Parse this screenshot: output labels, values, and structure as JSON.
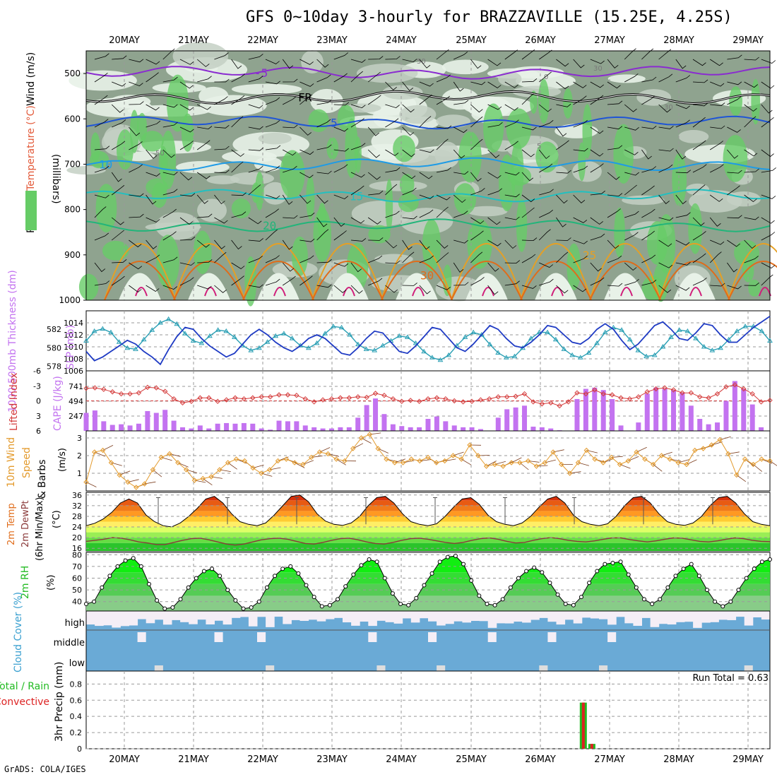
{
  "title": "GFS 0~10day 3-hourly for BRAZZAVILLE (15.25E, 4.25S)",
  "credit": "GrADS: COLA/IGES",
  "colors": {
    "axis": "#000000",
    "grid": "#9a9a9a",
    "rh_dark": "#8fa38f",
    "rh_mid": "#c4d0c4",
    "rh_light": "#e8f2e8",
    "rh_green": "#66cc66",
    "temp_purple": "#8a2bd0",
    "temp_freeze": "#000000",
    "temp_blue": "#1f55d6",
    "temp_lblue": "#1e9be6",
    "temp_teal": "#22c0c0",
    "temp_green": "#22b57a",
    "temp_orange": "#e6a024",
    "temp_dorange": "#e06c1a",
    "temp_magenta": "#d01e7a",
    "slp": "#2a9fb4",
    "thickness": "#1f3bc4",
    "lifted": "#d43a3a",
    "cape": "#c373f0",
    "wind": "#e39a2c",
    "barb": "#7a3a1a",
    "dewpt": "#8a3a3a",
    "rh2m": "#22bb22",
    "cloud": "#6aaad6",
    "cloud_clear": "#f4eef6",
    "rain": "#22bb22",
    "convective": "#dd2222"
  },
  "chart_data": [
    {
      "panel": "upper-air",
      "type": "heatmap",
      "ylabel_parts": [
        "Wind (m/s)",
        "Temperature (°C)",
        "RH (%)",
        "(millibars)"
      ],
      "y_ticks": [
        500,
        600,
        700,
        800,
        900,
        1000
      ],
      "ylim": [
        450,
        1000
      ],
      "x_dates_top": [
        "20MAY",
        "21MAY",
        "22MAY",
        "23MAY",
        "24MAY",
        "25MAY",
        "26MAY",
        "27MAY",
        "28MAY",
        "29MAY"
      ],
      "isotherms": [
        {
          "label": "-5",
          "level": 498,
          "color": "temp_purple"
        },
        {
          "label": "FR",
          "level": 552,
          "color": "temp_freeze"
        },
        {
          "label": "5",
          "level": 608,
          "color": "temp_blue"
        },
        {
          "label": "10",
          "level": 700,
          "color": "temp_lblue"
        },
        {
          "label": "15",
          "level": 770,
          "color": "temp_teal"
        },
        {
          "label": "20",
          "level": 835,
          "color": "temp_green"
        },
        {
          "label": "25",
          "level": 900,
          "color": "temp_orange"
        },
        {
          "label": "30",
          "level": 945,
          "color": "temp_dorange"
        }
      ],
      "rh_contour_labels": [
        "50",
        "30",
        "50",
        "0",
        "30",
        "5"
      ],
      "legend_rh_scale": "RH (%)"
    },
    {
      "panel": "pressure",
      "type": "line",
      "ylabel_left": "1000-500mb Thickness (dm)",
      "ylabel_right": "SLP (mb)",
      "left_ticks": [
        578,
        580,
        582
      ],
      "right_ticks": [
        1006,
        1008,
        1010,
        1012,
        1014
      ],
      "ylim_slp": [
        1006,
        1016
      ],
      "ylim_thickness": [
        577.5,
        584
      ],
      "series": [
        {
          "name": "SLP (mb)",
          "color": "slp",
          "marker": "triangle",
          "values": [
            1011,
            1012.6,
            1013,
            1012.4,
            1010.8,
            1009.8,
            1009.6,
            1011.2,
            1012.8,
            1014,
            1014.6,
            1013.8,
            1012.2,
            1011,
            1010.6,
            1011.8,
            1012.8,
            1012.6,
            1011.6,
            1010.2,
            1009.4,
            1009.8,
            1010.8,
            1011.8,
            1012.2,
            1011.4,
            1010.2,
            1009.8,
            1010.6,
            1012.2,
            1013.4,
            1013.2,
            1012,
            1010.4,
            1009.6,
            1009.4,
            1010.2,
            1011,
            1011.8,
            1011.6,
            1010.6,
            1009.2,
            1008.2,
            1007.8,
            1008.6,
            1010.2,
            1011.6,
            1012.4,
            1012,
            1010.4,
            1009,
            1008.2,
            1008.4,
            1009.8,
            1011.4,
            1012.4,
            1012.4,
            1011.2,
            1009.6,
            1008.6,
            1008.2,
            1009,
            1010.6,
            1012.4,
            1013.2,
            1012.8,
            1011.2,
            1009.4,
            1008.4,
            1008.6,
            1010,
            1011.6,
            1012.8,
            1012.6,
            1011.4,
            1010,
            1009.4,
            1009.8,
            1011.2,
            1012.6,
            1013.4,
            1013.4,
            1012.6,
            1011
          ]
        },
        {
          "name": "1000-500mb Thickness (dm)",
          "color": "thickness",
          "marker": "none",
          "values": [
            579.6,
            578.6,
            579,
            579.6,
            580.2,
            580.8,
            580.4,
            579.6,
            579,
            578.2,
            579.8,
            581.2,
            582.2,
            582,
            581,
            580.2,
            579.6,
            579,
            579.4,
            580.4,
            581.4,
            582,
            581.4,
            580.6,
            580,
            579.6,
            580.2,
            581,
            581.4,
            581,
            580.2,
            579.4,
            579.2,
            580,
            581,
            581.8,
            581.6,
            580.6,
            579.6,
            579.4,
            580.2,
            581.2,
            582.2,
            582,
            581,
            580,
            579.6,
            580.4,
            581.4,
            582.4,
            582,
            581,
            580.2,
            580,
            580.6,
            581.4,
            582.4,
            582.2,
            581.4,
            580.6,
            580.4,
            581,
            582,
            582.6,
            582,
            580.8,
            579.8,
            580.4,
            581.4,
            582.4,
            582.8,
            582,
            581,
            580.8,
            581.6,
            582.6,
            582.4,
            581.4,
            580.6,
            580.6,
            581.4,
            582.2,
            582.8,
            583.4
          ]
        }
      ]
    },
    {
      "panel": "stability",
      "type": "bar",
      "ylabel_left": "Lifted Index",
      "ylabel_right": "CAPE (J/kg)",
      "left_ticks": [
        "-6",
        "-3",
        "0",
        "3",
        "6"
      ],
      "right_ticks": [
        247,
        494,
        741
      ],
      "ylim_cape": [
        0,
        1000
      ],
      "series": [
        {
          "name": "CAPE (J/kg)",
          "color": "cape",
          "values": [
            300,
            340,
            160,
            100,
            110,
            90,
            120,
            330,
            300,
            350,
            170,
            60,
            40,
            90,
            40,
            120,
            130,
            120,
            130,
            120,
            40,
            20,
            170,
            160,
            160,
            90,
            60,
            40,
            40,
            60,
            60,
            220,
            430,
            540,
            280,
            110,
            80,
            60,
            60,
            200,
            240,
            160,
            90,
            60,
            60,
            30,
            0,
            220,
            360,
            390,
            420,
            70,
            60,
            40,
            10,
            0,
            530,
            700,
            720,
            680,
            530,
            90,
            0,
            140,
            620,
            720,
            700,
            680,
            640,
            420,
            200,
            110,
            140,
            500,
            830,
            700,
            440,
            60,
            0
          ]
        },
        {
          "name": "Lifted Index",
          "color": "lifted",
          "values": [
            -2.5,
            -2.6,
            -2.3,
            -1.8,
            -1.4,
            -1.4,
            -1.6,
            -2.7,
            -2.6,
            -1.9,
            -0.4,
            0.4,
            0.1,
            -0.6,
            -0.6,
            0.1,
            -0.2,
            -0.6,
            -0.4,
            -0.6,
            -0.8,
            -0.8,
            -1.2,
            -1.2,
            -1.1,
            -0.4,
            0.2,
            -0.2,
            -0.4,
            -0.6,
            -0.6,
            -0.8,
            -0.7,
            -1.5,
            -1.1,
            -0.4,
            0.1,
            -0.1,
            0.1,
            -0.4,
            -0.6,
            -0.4,
            0,
            0.2,
            0.1,
            -0.2,
            -0.4,
            -0.8,
            -0.8,
            -0.9,
            -1.4,
            0.2,
            0.6,
            0.4,
            1,
            0.2,
            -1.6,
            -1.4,
            -2.2,
            -1.4,
            -1.2,
            -0.6,
            -0.4,
            -0.8,
            -1.8,
            -2.4,
            -2.6,
            -2.2,
            -1.6,
            -1.6,
            -0.8,
            -0.6,
            -1.4,
            -2.8,
            -3.2,
            -2.4,
            -1.4,
            0.2,
            -0.1
          ]
        }
      ]
    },
    {
      "panel": "wind",
      "type": "line",
      "ylabel": "10m Wind Speed (m/s) & Barbs",
      "y_ticks": [
        1,
        2,
        3
      ],
      "ylim": [
        0,
        3.4
      ],
      "series": [
        {
          "name": "10m Wind Speed",
          "color": "wind",
          "values": [
            0.5,
            2.2,
            2.3,
            1.6,
            0.9,
            0.5,
            0.2,
            0.4,
            1.2,
            1.9,
            2.1,
            1.6,
            1.2,
            0.6,
            0.7,
            0.8,
            1.2,
            1.6,
            1.8,
            1.7,
            1.3,
            1,
            1.2,
            1.7,
            1.8,
            1.6,
            1.5,
            1.9,
            2.2,
            2.1,
            1.8,
            1.7,
            2.4,
            3,
            3.2,
            2.4,
            1.8,
            1.6,
            1.6,
            1.8,
            1.7,
            1.9,
            1.6,
            1.7,
            2,
            1.8,
            2.6,
            2,
            1.4,
            1.5,
            1.4,
            1.6,
            1.6,
            1.7,
            1.4,
            1.6,
            2.2,
            1.5,
            1,
            1.6,
            2.3,
            1.8,
            1.6,
            1.9,
            1.5,
            1.7,
            2.2,
            1.8,
            1.5,
            2,
            1.8,
            1.6,
            1.5,
            2.3,
            2.4,
            2.6,
            2.9,
            2.1,
            0.9,
            1.8,
            1.5,
            1.8,
            1.7
          ]
        }
      ]
    },
    {
      "panel": "temperature",
      "type": "area",
      "ylabel": "2m Temp 2m DewPt (6hr Min/Max) (°C)",
      "y_ticks": [
        16,
        20,
        24,
        28,
        32,
        36
      ],
      "ylim": [
        15,
        37
      ],
      "series": [
        {
          "name": "2m Temp",
          "color": "temp_dorange",
          "values": [
            24.5,
            25.4,
            27,
            29.5,
            33,
            34.5,
            33,
            28.5,
            26,
            24.5,
            24,
            25.5,
            28,
            31,
            34.5,
            35.5,
            33,
            29,
            26,
            25,
            24.5,
            25.5,
            28.5,
            32,
            35.5,
            36,
            33.5,
            29,
            26.2,
            25,
            24.6,
            25.5,
            28,
            32,
            35,
            35.5,
            33,
            29,
            26,
            25,
            24.5,
            25.2,
            28,
            31.5,
            34.5,
            35,
            32.5,
            28.5,
            26,
            25,
            24.5,
            25.5,
            28,
            31.5,
            34.5,
            35.5,
            33,
            28.5,
            26,
            25,
            24.5,
            25.2,
            28,
            32,
            35,
            35.5,
            33,
            29,
            26,
            25,
            24.6,
            25.5,
            28,
            32,
            35,
            35.5,
            33,
            29,
            26,
            25,
            24.5
          ]
        },
        {
          "name": "2m DewPt",
          "color": "dewpt",
          "values": [
            18.6,
            19,
            19.4,
            20,
            19.8,
            19.2,
            18.4,
            18,
            17.4,
            17.4,
            18.2,
            19,
            19.6,
            19.8,
            19.2,
            18.4,
            17.6,
            17.2,
            17.6,
            18.4,
            19.2,
            19.6,
            19.8,
            19.4,
            18.6,
            17.8,
            17.6,
            18.2,
            19,
            19.6,
            19.8,
            19.2,
            18.4,
            17.8,
            17.6,
            18.2,
            19,
            19.6,
            19.8,
            19.4,
            18.8,
            18.2,
            17.8,
            18.2,
            19,
            19.6,
            19.9,
            19.4,
            18.6,
            18,
            18.2,
            19,
            19.6,
            20,
            19.6,
            19,
            18.6,
            18.4,
            18.8,
            19.4,
            19.9,
            19.9,
            19.3,
            18.8,
            18.4,
            18.8,
            19.4,
            19.9,
            19.8,
            19.2,
            18.6,
            18.4,
            18.8,
            19.4,
            19.9,
            19.6,
            19,
            18.6,
            18.5
          ]
        }
      ]
    },
    {
      "panel": "humidity",
      "type": "area",
      "ylabel": "2m RH (%)",
      "y_ticks": [
        40,
        50,
        60,
        70,
        80
      ],
      "ylim": [
        32,
        82
      ],
      "series": [
        {
          "name": "2m RH",
          "color": "rh2m",
          "values": [
            38,
            40,
            52,
            62,
            70,
            75,
            77,
            70,
            55,
            41,
            34,
            35,
            42,
            52,
            60,
            66,
            68,
            62,
            50,
            41,
            34,
            35,
            40,
            52,
            62,
            68,
            70,
            64,
            54,
            44,
            36,
            37,
            42,
            53,
            63,
            71,
            76,
            74,
            60,
            47,
            38,
            37,
            43,
            54,
            64,
            74,
            78,
            79,
            72,
            58,
            45,
            38,
            37,
            42,
            52,
            60,
            66,
            69,
            65,
            56,
            46,
            38,
            37,
            44,
            56,
            66,
            72,
            73,
            74,
            63,
            52,
            42,
            38,
            42,
            52,
            62,
            68,
            72,
            62,
            50,
            40,
            36,
            40,
            50,
            60,
            68,
            74,
            76
          ]
        }
      ]
    },
    {
      "panel": "clouds",
      "type": "heatmap",
      "ylabel": "Cloud Cover (%)",
      "row_labels": [
        "high",
        "middle",
        "low"
      ]
    },
    {
      "panel": "precip",
      "type": "bar",
      "ylabel": "3hr Precip (mm)",
      "legend_left": [
        "Total / Rain",
        "Convective"
      ],
      "y_ticks": [
        "0",
        "0.2",
        "0.4",
        "0.6",
        "0.8"
      ],
      "ylim": [
        0,
        0.96
      ],
      "run_total": "Run Total = 0.63",
      "x_dates_bottom": [
        "20MAY",
        "21MAY",
        "22MAY",
        "23MAY",
        "24MAY",
        "25MAY",
        "26MAY",
        "27MAY",
        "28MAY",
        "29MAY"
      ],
      "series": [
        {
          "name": "Total / Rain",
          "color": "rain",
          "index": [
            58,
            59
          ],
          "values": [
            0.57,
            0.06
          ]
        },
        {
          "name": "Convective",
          "color": "convective",
          "index": [
            58,
            59
          ],
          "values": [
            0.57,
            0.06
          ]
        }
      ]
    }
  ]
}
